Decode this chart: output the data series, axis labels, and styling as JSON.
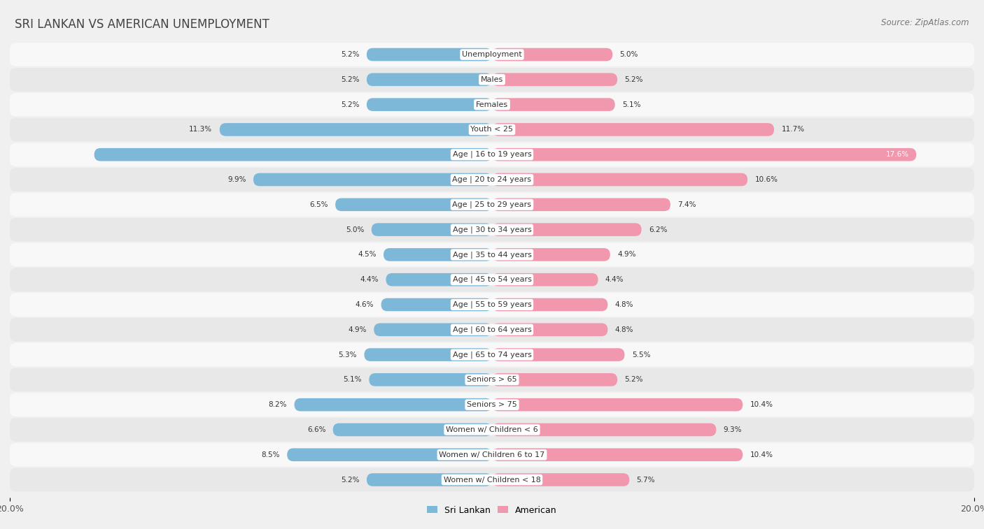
{
  "title": "SRI LANKAN VS AMERICAN UNEMPLOYMENT",
  "source": "Source: ZipAtlas.com",
  "categories": [
    "Unemployment",
    "Males",
    "Females",
    "Youth < 25",
    "Age | 16 to 19 years",
    "Age | 20 to 24 years",
    "Age | 25 to 29 years",
    "Age | 30 to 34 years",
    "Age | 35 to 44 years",
    "Age | 45 to 54 years",
    "Age | 55 to 59 years",
    "Age | 60 to 64 years",
    "Age | 65 to 74 years",
    "Seniors > 65",
    "Seniors > 75",
    "Women w/ Children < 6",
    "Women w/ Children 6 to 17",
    "Women w/ Children < 18"
  ],
  "sri_lankan": [
    5.2,
    5.2,
    5.2,
    11.3,
    16.5,
    9.9,
    6.5,
    5.0,
    4.5,
    4.4,
    4.6,
    4.9,
    5.3,
    5.1,
    8.2,
    6.6,
    8.5,
    5.2
  ],
  "american": [
    5.0,
    5.2,
    5.1,
    11.7,
    17.6,
    10.6,
    7.4,
    6.2,
    4.9,
    4.4,
    4.8,
    4.8,
    5.5,
    5.2,
    10.4,
    9.3,
    10.4,
    5.7
  ],
  "sri_lankan_color": "#7eb8d9",
  "american_color": "#f197ae",
  "axis_max": 20.0,
  "background_color": "#f0f0f0",
  "row_color_odd": "#e8e8e8",
  "row_color_even": "#f8f8f8",
  "title_fontsize": 12,
  "source_fontsize": 8.5,
  "label_fontsize": 8,
  "value_fontsize": 7.5
}
